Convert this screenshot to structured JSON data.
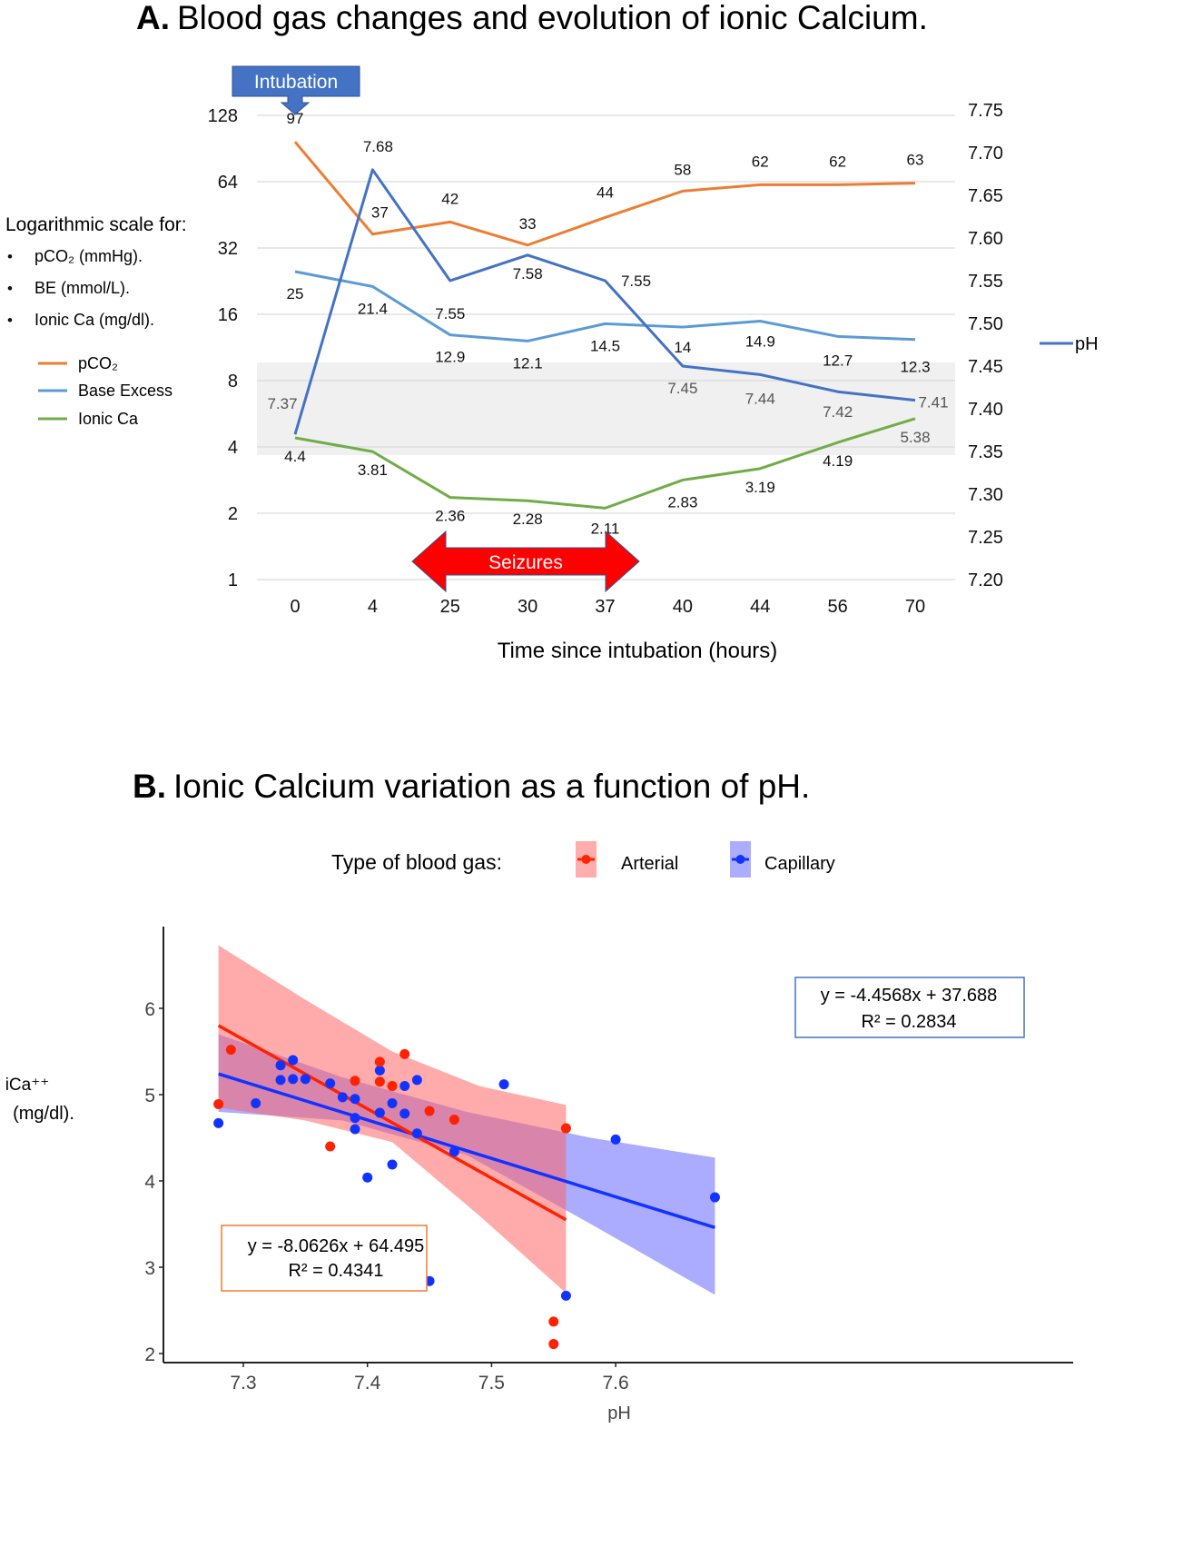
{
  "chart_data": [
    {
      "type": "line",
      "title_prefix": "A.",
      "title": "Blood gas changes and evolution of ionic Calcium.",
      "xlabel": "Time since intubation (hours)",
      "categories": [
        "0",
        "4",
        "25",
        "30",
        "37",
        "40",
        "44",
        "56",
        "70"
      ],
      "left_axis": {
        "scale": "log2",
        "ticks": [
          "1",
          "2",
          "4",
          "8",
          "16",
          "32",
          "64",
          "128"
        ],
        "range": [
          1,
          128
        ]
      },
      "right_axis": {
        "label": "pH",
        "ticks": [
          "7.20",
          "7.25",
          "7.30",
          "7.35",
          "7.40",
          "7.45",
          "7.50",
          "7.55",
          "7.60",
          "7.65",
          "7.70",
          "7.75"
        ],
        "range": [
          7.2,
          7.75
        ]
      },
      "normal_range_band": {
        "ph_from": 7.35,
        "ph_to": 7.45,
        "color": "#f0f0f0"
      },
      "series": [
        {
          "name": "pCO2",
          "axis": "left",
          "color": "#ed7d31",
          "values": [
            97,
            37,
            42,
            33,
            44,
            58,
            62,
            62,
            63
          ],
          "labels": [
            "97",
            "37",
            "42",
            "33",
            "44",
            "58",
            "62",
            "62",
            "63"
          ]
        },
        {
          "name": "Base Excess",
          "axis": "left",
          "color": "#5b9bd5",
          "values": [
            25,
            21.4,
            12.9,
            12.1,
            14.5,
            14,
            14.9,
            12.7,
            12.3
          ],
          "labels": [
            "25",
            "21.4",
            "12.9",
            "12.1",
            "14.5",
            "14",
            "14.9",
            "12.7",
            "12.3"
          ]
        },
        {
          "name": "Ionic Ca",
          "axis": "left",
          "color": "#70ad47",
          "values": [
            4.4,
            3.81,
            2.36,
            2.28,
            2.11,
            2.83,
            3.19,
            4.19,
            5.38
          ],
          "labels": [
            "4.4",
            "3.81",
            "2.36",
            "2.28",
            "2.11",
            "2.83",
            "3.19",
            "4.19",
            "5.38"
          ]
        },
        {
          "name": "pH",
          "axis": "right",
          "color": "#4472c4",
          "values": [
            7.37,
            7.68,
            7.55,
            7.58,
            7.55,
            7.45,
            7.44,
            7.42,
            7.41
          ],
          "labels": [
            "7.37",
            "7.68",
            "7.55",
            "7.58",
            "7.55",
            "7.45",
            "7.44",
            "7.42",
            "7.41"
          ]
        }
      ],
      "side_note": {
        "heading": "Logarithmic scale for:",
        "items": [
          "pCO₂ (mmHg).",
          "BE (mmol/L).",
          "Ionic Ca (mg/dl)."
        ]
      },
      "legend_left": [
        "pCO₂",
        "Base Excess",
        "Ionic Ca"
      ],
      "legend_right": "pH",
      "annotations": {
        "intubation": {
          "text": "Intubation",
          "at_category": "0",
          "color": "#4472c4"
        },
        "seizures": {
          "text": "Seizures",
          "from_category": "25",
          "to_category": "37",
          "color": "#ff0000"
        }
      }
    },
    {
      "type": "scatter",
      "title_prefix": "B.",
      "title": "Ionic Calcium variation as a function of pH.",
      "xlabel": "pH",
      "ylabel": "iCa⁺⁺ (mg/dl).",
      "xlim": [
        7.265,
        7.695
      ],
      "ylim": [
        1.85,
        6.95
      ],
      "xticks": [
        "7.3",
        "7.4",
        "7.5",
        "7.6"
      ],
      "yticks": [
        "2",
        "3",
        "4",
        "5",
        "6"
      ],
      "legend": {
        "title": "Type of blood gas:",
        "entries": [
          "Arterial",
          "Capillary"
        ],
        "placement": "top-center"
      },
      "series": [
        {
          "name": "Arterial",
          "color": "#ff2200",
          "band_color": "#ff6666",
          "fit": {
            "x_from": 7.28,
            "x_to": 7.56,
            "y_from": 5.8,
            "y_to": 3.55
          },
          "ci_upper": [
            [
              7.28,
              6.73
            ],
            [
              7.35,
              6.1
            ],
            [
              7.42,
              5.5
            ],
            [
              7.49,
              5.1
            ],
            [
              7.56,
              4.88
            ]
          ],
          "ci_lower": [
            [
              7.28,
              4.85
            ],
            [
              7.35,
              4.7
            ],
            [
              7.42,
              4.45
            ],
            [
              7.49,
              3.6
            ],
            [
              7.56,
              2.7
            ]
          ],
          "equation": "y = -8.0626x + 64.495",
          "r2": "R² = 0.4341",
          "points": [
            [
              7.28,
              4.89
            ],
            [
              7.29,
              5.52
            ],
            [
              7.37,
              4.4
            ],
            [
              7.39,
              5.16
            ],
            [
              7.41,
              5.38
            ],
            [
              7.41,
              5.15
            ],
            [
              7.42,
              5.1
            ],
            [
              7.43,
              5.47
            ],
            [
              7.45,
              4.81
            ],
            [
              7.47,
              4.71
            ],
            [
              7.56,
              4.61
            ],
            [
              7.55,
              2.37
            ],
            [
              7.55,
              2.11
            ]
          ]
        },
        {
          "name": "Capillary",
          "color": "#1133ff",
          "band_color": "#6666ff",
          "fit": {
            "x_from": 7.28,
            "x_to": 7.68,
            "y_from": 5.24,
            "y_to": 3.46
          },
          "ci_upper": [
            [
              7.28,
              5.7
            ],
            [
              7.38,
              5.2
            ],
            [
              7.48,
              4.8
            ],
            [
              7.58,
              4.5
            ],
            [
              7.68,
              4.27
            ]
          ],
          "ci_lower": [
            [
              7.28,
              4.8
            ],
            [
              7.38,
              4.7
            ],
            [
              7.48,
              4.3
            ],
            [
              7.58,
              3.5
            ],
            [
              7.68,
              2.68
            ]
          ],
          "equation": "y = -4.4568x + 37.688",
          "r2": "R² = 0.2834",
          "points": [
            [
              7.28,
              4.67
            ],
            [
              7.31,
              4.9
            ],
            [
              7.33,
              5.17
            ],
            [
              7.33,
              5.34
            ],
            [
              7.34,
              5.4
            ],
            [
              7.34,
              5.18
            ],
            [
              7.35,
              5.18
            ],
            [
              7.37,
              5.13
            ],
            [
              7.38,
              4.97
            ],
            [
              7.39,
              4.95
            ],
            [
              7.39,
              4.73
            ],
            [
              7.39,
              4.6
            ],
            [
              7.4,
              4.04
            ],
            [
              7.41,
              5.28
            ],
            [
              7.41,
              4.79
            ],
            [
              7.42,
              4.9
            ],
            [
              7.42,
              4.19
            ],
            [
              7.43,
              5.1
            ],
            [
              7.43,
              4.78
            ],
            [
              7.44,
              5.17
            ],
            [
              7.44,
              4.55
            ],
            [
              7.44,
              3.19
            ],
            [
              7.45,
              2.84
            ],
            [
              7.47,
              4.34
            ],
            [
              7.51,
              5.12
            ],
            [
              7.56,
              2.67
            ],
            [
              7.6,
              4.48
            ],
            [
              7.68,
              3.81
            ]
          ]
        }
      ]
    }
  ]
}
